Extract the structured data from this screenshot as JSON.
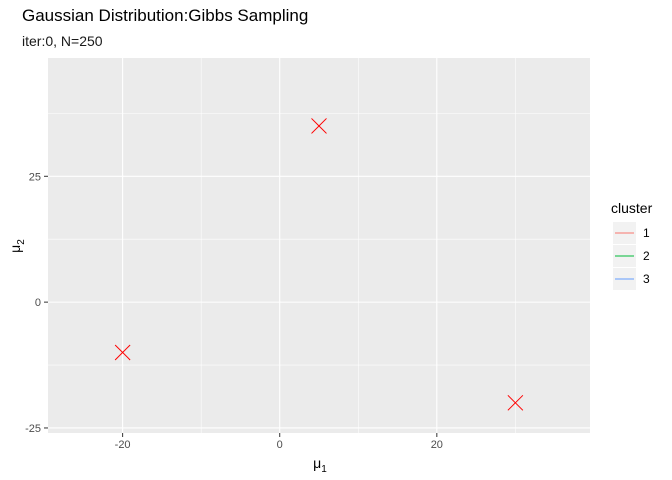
{
  "chart_data": {
    "type": "scatter",
    "title": "Gaussian Distribution:Gibbs Sampling",
    "subtitle": "iter:0, N=250",
    "xlabel": {
      "base": "μ",
      "sub": "1"
    },
    "ylabel": {
      "base": "μ",
      "sub": "2"
    },
    "xlim": [
      -29.5,
      39.5
    ],
    "ylim": [
      -26,
      48.5
    ],
    "xticks": [
      -20,
      0,
      20
    ],
    "yticks": [
      -25,
      0,
      25
    ],
    "grid": true,
    "legend": {
      "title": "cluster",
      "position": "right",
      "entries": [
        {
          "label": "1",
          "color": "#F8766D"
        },
        {
          "label": "2",
          "color": "#00BA38"
        },
        {
          "label": "3",
          "color": "#619CFF"
        }
      ]
    },
    "points": [
      {
        "x": -20,
        "y": -10,
        "marker": "x",
        "color": "#FF0000"
      },
      {
        "x": 5,
        "y": 35,
        "marker": "x",
        "color": "#FF0000"
      },
      {
        "x": 30,
        "y": -20,
        "marker": "x",
        "color": "#FF0000"
      }
    ]
  }
}
